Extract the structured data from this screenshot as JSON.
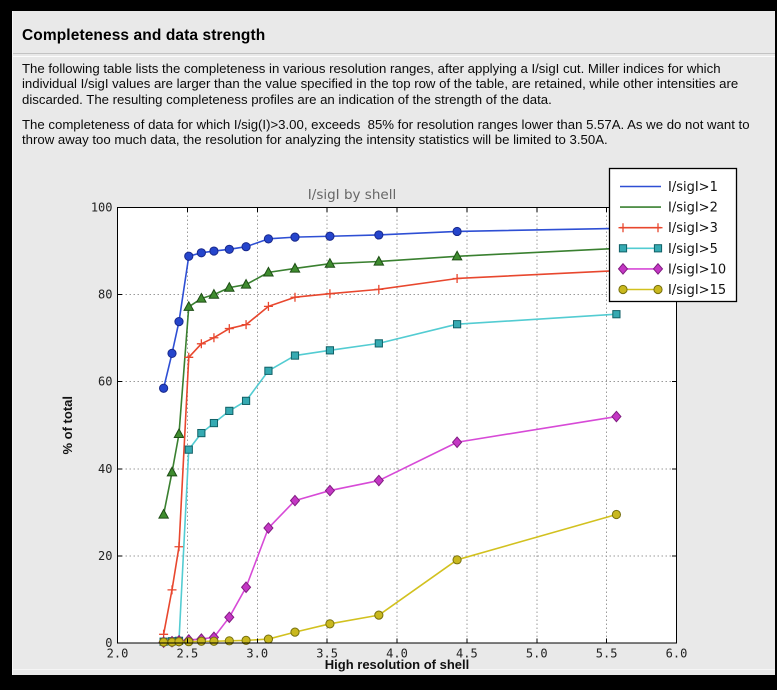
{
  "page": {
    "title": "Completeness and data strength",
    "paragraph1": "The following table lists the completeness in various resolution ranges, after applying a I/sigI cut. Miller indices for which individual I/sigI values are larger than the value specified in the top row of the table, are retained, while other intensities are discarded. The resulting completeness profiles are an indication of the strength of the data.",
    "paragraph2": "The completeness of data for which I/sig(I)>3.00, exceeds  85% for resolution ranges lower than 5.57A. As we do not want to throw away too much data, the resolution for analyzing the intensity statistics will be limited to 3.50A."
  },
  "chart_data": {
    "type": "line",
    "title": "I/sigI by shell",
    "xlabel": "High resolution of shell",
    "ylabel": "% of total",
    "xlim": [
      2.0,
      6.0
    ],
    "ylim": [
      0,
      100
    ],
    "xticks": [
      2.0,
      2.5,
      3.0,
      3.5,
      4.0,
      4.5,
      5.0,
      5.5,
      6.0
    ],
    "xtick_labels": [
      "2.0",
      "2.5",
      "3.0",
      "3.5",
      "4.0",
      "4.5",
      "5.0",
      "5.5",
      "6.0"
    ],
    "yticks": [
      0,
      20,
      40,
      60,
      80,
      100
    ],
    "ytick_labels": [
      "0",
      "20",
      "40",
      "60",
      "80",
      "100"
    ],
    "grid": true,
    "legend_position": "upper right",
    "x": [
      2.33,
      2.39,
      2.44,
      2.51,
      2.6,
      2.69,
      2.8,
      2.92,
      3.08,
      3.27,
      3.52,
      3.87,
      4.43,
      5.57
    ],
    "series": [
      {
        "name": "I/sigI>1",
        "marker": "circle",
        "legend_markers": false,
        "color": "#2e4fd4",
        "marker_fill": "#2545cc",
        "marker_edge": "#18288c",
        "values": [
          58.5,
          66.5,
          73.8,
          88.8,
          89.6,
          90.0,
          90.4,
          91.0,
          92.8,
          93.2,
          93.4,
          93.7,
          94.5,
          95.2
        ]
      },
      {
        "name": "I/sigI>2",
        "marker": "triangle",
        "legend_markers": false,
        "color": "#3a8030",
        "marker_fill": "#3f8c2f",
        "marker_edge": "#1d4d15",
        "values": [
          29.5,
          39.2,
          48.0,
          77.2,
          79.1,
          80.0,
          81.6,
          82.3,
          85.1,
          86.0,
          87.1,
          87.6,
          88.8,
          90.6
        ]
      },
      {
        "name": "I/sigI>3",
        "marker": "plus",
        "legend_markers": true,
        "color": "#e8472e",
        "marker_fill": "#e8472e",
        "marker_edge": "#e8472e",
        "values": [
          2.0,
          12.2,
          22.1,
          65.6,
          68.7,
          70.1,
          72.2,
          73.1,
          77.3,
          79.4,
          80.2,
          81.2,
          83.7,
          85.5
        ]
      },
      {
        "name": "I/sigI>5",
        "marker": "square",
        "legend_markers": true,
        "color": "#53ccd2",
        "marker_fill": "#35aab2",
        "marker_edge": "#116066",
        "values": [
          0.3,
          0.4,
          0.5,
          44.4,
          48.2,
          50.5,
          53.3,
          55.6,
          62.5,
          66.0,
          67.2,
          68.8,
          73.2,
          75.5
        ]
      },
      {
        "name": "I/sigI>10",
        "marker": "diamond",
        "legend_markers": true,
        "color": "#d74ad7",
        "marker_fill": "#c437c4",
        "marker_edge": "#801d80",
        "values": [
          0.2,
          0.3,
          0.5,
          0.7,
          0.9,
          1.3,
          5.9,
          12.8,
          26.4,
          32.7,
          35.0,
          37.3,
          46.1,
          52.0
        ]
      },
      {
        "name": "I/sigI>15",
        "marker": "circle",
        "legend_markers": true,
        "color": "#d2c11f",
        "marker_fill": "#c9b81e",
        "marker_edge": "#77700e",
        "values": [
          0.2,
          0.2,
          0.3,
          0.3,
          0.4,
          0.4,
          0.5,
          0.6,
          0.9,
          2.5,
          4.4,
          6.4,
          19.1,
          29.5
        ]
      }
    ],
    "colors": {
      "panel_bg": "#e9e9e9",
      "plot_bg": "#ffffff",
      "grid": "#9a9a9a",
      "spine": "#000000",
      "legend_bg": "#ffffff",
      "legend_border": "#000000",
      "title_text": "#666666"
    }
  }
}
